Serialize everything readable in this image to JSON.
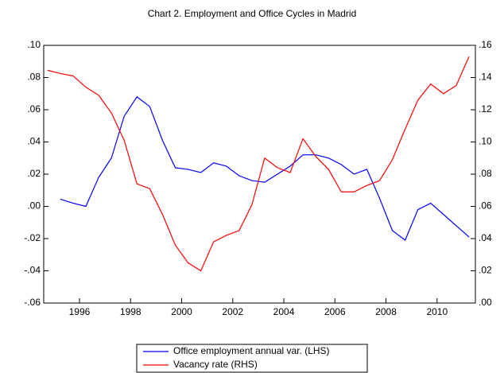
{
  "chart_data": {
    "type": "line",
    "title": "Chart 2. Employment and Office Cycles in Madrid",
    "xlim": [
      1994.6,
      2011.5
    ],
    "xticks": [
      1996,
      1998,
      2000,
      2002,
      2004,
      2006,
      2008,
      2010
    ],
    "ylim": [
      -0.06,
      0.1
    ],
    "yticks": [
      {
        "value": -0.06,
        "label": "-.06"
      },
      {
        "value": -0.04,
        "label": "-.04"
      },
      {
        "value": -0.02,
        "label": "-.02"
      },
      {
        "value": 0,
        "label": ".00"
      },
      {
        "value": 0.02,
        "label": ".02"
      },
      {
        "value": 0.04,
        "label": ".04"
      },
      {
        "value": 0.06,
        "label": ".06"
      },
      {
        "value": 0.08,
        "label": ".08"
      },
      {
        "value": 0.1,
        "label": ".10"
      }
    ],
    "y2lim": [
      0,
      0.16
    ],
    "y2ticks": [
      {
        "value": 0,
        "label": ".00"
      },
      {
        "value": 0.02,
        "label": ".02"
      },
      {
        "value": 0.04,
        "label": ".04"
      },
      {
        "value": 0.06,
        "label": ".06"
      },
      {
        "value": 0.08,
        "label": ".08"
      },
      {
        "value": 0.1,
        "label": ".10"
      },
      {
        "value": 0.12,
        "label": ".12"
      },
      {
        "value": 0.14,
        "label": ".14"
      },
      {
        "value": 0.16,
        "label": ".16"
      }
    ],
    "series": [
      {
        "name": "Office employment annual var. (LHS)",
        "color": "#0000ff",
        "x": [
          1995.25,
          1995.75,
          1996.25,
          1996.75,
          1997.25,
          1997.75,
          1998.25,
          1998.75,
          1999.25,
          1999.75,
          2000.25,
          2000.75,
          2001.25,
          2001.75,
          2002.25,
          2002.75,
          2003.25,
          2003.75,
          2004.25,
          2004.75,
          2005.25,
          2005.75,
          2006.25,
          2006.75,
          2007.25,
          2007.75,
          2008.25,
          2008.75,
          2009.25,
          2009.75,
          2010.25,
          2010.75,
          2011.25
        ],
        "values": [
          0.0045,
          0.002,
          0.0,
          0.018,
          0.03,
          0.056,
          0.068,
          0.062,
          0.041,
          0.024,
          0.023,
          0.021,
          0.027,
          0.025,
          0.019,
          0.016,
          0.015,
          0.02,
          0.025,
          0.032,
          0.032,
          0.03,
          0.026,
          0.02,
          0.023,
          0.005,
          -0.015,
          -0.021,
          -0.002,
          0.002,
          -0.005,
          -0.012,
          -0.019
        ]
      },
      {
        "name": "Vacancy rate (RHS)",
        "color": "#ff0000",
        "axis": "y2",
        "x": [
          1994.75,
          1995.25,
          1995.75,
          1996.25,
          1996.75,
          1997.25,
          1997.75,
          1998.25,
          1998.75,
          1999.25,
          1999.75,
          2000.25,
          2000.75,
          2001.25,
          2001.75,
          2002.25,
          2002.75,
          2003.25,
          2003.75,
          2004.25,
          2004.75,
          2005.25,
          2005.75,
          2006.25,
          2006.75,
          2007.25,
          2007.75,
          2008.25,
          2008.75,
          2009.25,
          2009.75,
          2010.25,
          2010.75,
          2011.25
        ],
        "values": [
          0.1445,
          0.1425,
          0.141,
          0.134,
          0.129,
          0.118,
          0.101,
          0.074,
          0.071,
          0.055,
          0.036,
          0.025,
          0.02,
          0.038,
          0.042,
          0.045,
          0.061,
          0.09,
          0.084,
          0.081,
          0.102,
          0.091,
          0.083,
          0.069,
          0.069,
          0.073,
          0.076,
          0.089,
          0.108,
          0.126,
          0.136,
          0.13,
          0.135,
          0.153
        ]
      }
    ]
  }
}
